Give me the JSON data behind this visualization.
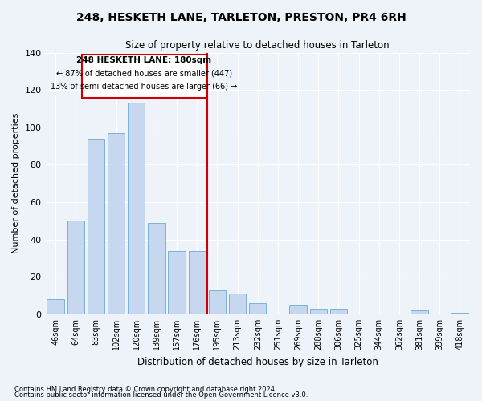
{
  "title": "248, HESKETH LANE, TARLETON, PRESTON, PR4 6RH",
  "subtitle": "Size of property relative to detached houses in Tarleton",
  "xlabel": "Distribution of detached houses by size in Tarleton",
  "ylabel": "Number of detached properties",
  "bar_color": "#c5d8ef",
  "bar_edge_color": "#6aaad4",
  "background_color": "#eef2f9",
  "categories": [
    "46sqm",
    "64sqm",
    "83sqm",
    "102sqm",
    "120sqm",
    "139sqm",
    "157sqm",
    "176sqm",
    "195sqm",
    "213sqm",
    "232sqm",
    "251sqm",
    "269sqm",
    "288sqm",
    "306sqm",
    "325sqm",
    "344sqm",
    "362sqm",
    "381sqm",
    "399sqm",
    "418sqm"
  ],
  "values": [
    8,
    50,
    94,
    97,
    113,
    49,
    34,
    34,
    13,
    11,
    6,
    0,
    5,
    3,
    3,
    0,
    0,
    0,
    2,
    0,
    1
  ],
  "ylim": [
    0,
    140
  ],
  "yticks": [
    0,
    20,
    40,
    60,
    80,
    100,
    120,
    140
  ],
  "vline_x_index": 7,
  "vline_color": "#cc0000",
  "annotation_title": "248 HESKETH LANE: 180sqm",
  "annotation_line1": "← 87% of detached houses are smaller (447)",
  "annotation_line2": "13% of semi-detached houses are larger (66) →",
  "footer1": "Contains HM Land Registry data © Crown copyright and database right 2024.",
  "footer2": "Contains public sector information licensed under the Open Government Licence v3.0."
}
